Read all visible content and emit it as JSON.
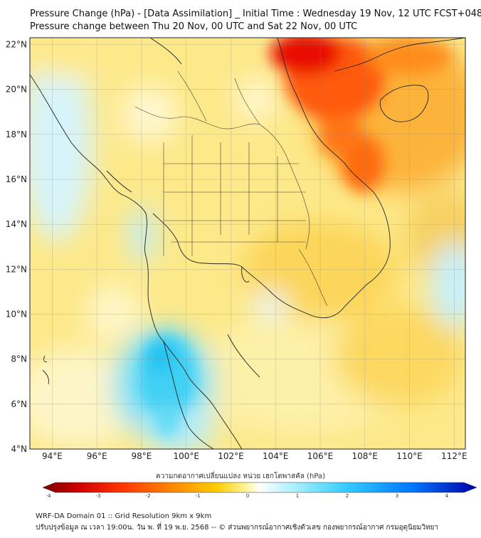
{
  "title_line1": "Pressure Change (hPa) - [Data Assimilation] _ Initial Time : Wednesday 19 Nov, 12 UTC FCST+048",
  "title_line2": "Pressure change between Thu 20 Nov, 00 UTC and Sat 22 Nov, 00 UTC",
  "map": {
    "lat_labels": [
      "22°N",
      "20°N",
      "18°N",
      "16°N",
      "14°N",
      "12°N",
      "10°N",
      "8°N",
      "6°N",
      "4°N"
    ],
    "lon_labels": [
      "94°E",
      "96°E",
      "98°E",
      "100°E",
      "102°E",
      "104°E",
      "106°E",
      "108°E",
      "110°E",
      "112°E"
    ],
    "lat_range": [
      4,
      22.3
    ],
    "lon_range": [
      93,
      112.5
    ],
    "gridlines": true
  },
  "colorbar": {
    "title": "ความกดอากาศเปลี่ยนแปลง หน่วย เฮกโตพาสคัล (hPa)",
    "ticks": [
      "-4",
      "-3",
      "-2",
      "-1",
      "0",
      "1",
      "2",
      "3",
      "4"
    ],
    "range": [
      -4,
      4
    ],
    "colors": [
      "#7a0000",
      "#cc0000",
      "#ff3300",
      "#ff8800",
      "#ffcc00",
      "#fff5a0",
      "#ffffff",
      "#aaf0ff",
      "#33ccff",
      "#0077ff",
      "#0000aa"
    ]
  },
  "footer": {
    "line1": "WRF-DA Domain 01 :: Grid Resolution 9km x 9km",
    "line2": "ปรับปรุงข้อมูล ณ เวลา 19:00น. วัน พ. ที่ 19 พ.ย. 2568 -- © ส่วนพยากรณ์อากาศเชิงตัวเลข กองพยากรณ์อากาศ กรมอุตุนิยมวิทยา"
  }
}
